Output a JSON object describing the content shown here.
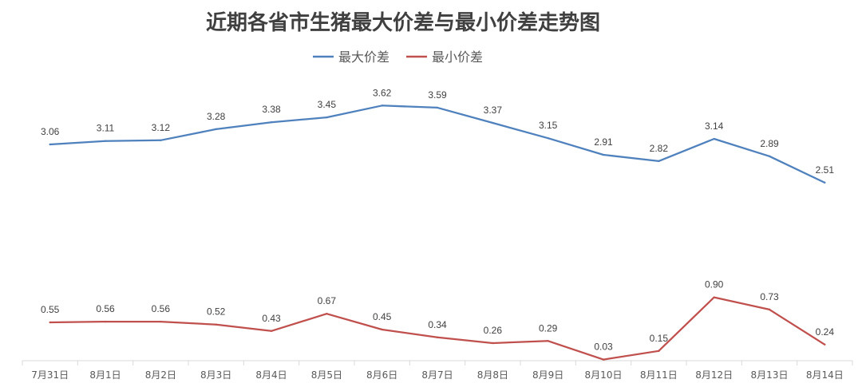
{
  "chart_data": {
    "type": "line",
    "title": "近期各省市生猪最大价差与最小价差走势图",
    "categories": [
      "7月31日",
      "8月1日",
      "8月2日",
      "8月3日",
      "8月4日",
      "8月5日",
      "8月6日",
      "8月7日",
      "8月8日",
      "8月9日",
      "8月10日",
      "8月11日",
      "8月12日",
      "8月13日",
      "8月14日"
    ],
    "series": [
      {
        "name": "最大价差",
        "color": "#4f81bd",
        "values": [
          3.06,
          3.11,
          3.12,
          3.28,
          3.38,
          3.45,
          3.62,
          3.59,
          3.37,
          3.15,
          2.91,
          2.82,
          3.14,
          2.89,
          2.51
        ],
        "labels": [
          "3.06",
          "3.11",
          "3.12",
          "3.28",
          "3.38",
          "3.45",
          "3.62",
          "3.59",
          "3.37",
          "3.15",
          "2.91",
          "2.82",
          "3.14",
          "2.89",
          "2.51"
        ]
      },
      {
        "name": "最小价差",
        "color": "#c0504d",
        "values": [
          0.55,
          0.56,
          0.56,
          0.52,
          0.43,
          0.67,
          0.45,
          0.34,
          0.26,
          0.29,
          0.03,
          0.15,
          0.9,
          0.73,
          0.24
        ],
        "labels": [
          "0.55",
          "0.56",
          "0.56",
          "0.52",
          "0.43",
          "0.67",
          "0.45",
          "0.34",
          "0.26",
          "0.29",
          "0.03",
          "0.15",
          "0.90",
          "0.73",
          "0.24"
        ]
      }
    ],
    "xlabel": "",
    "ylabel": "",
    "ylim": [
      0,
      4
    ],
    "grid": false,
    "legend": "top-center",
    "data_labels": true
  }
}
